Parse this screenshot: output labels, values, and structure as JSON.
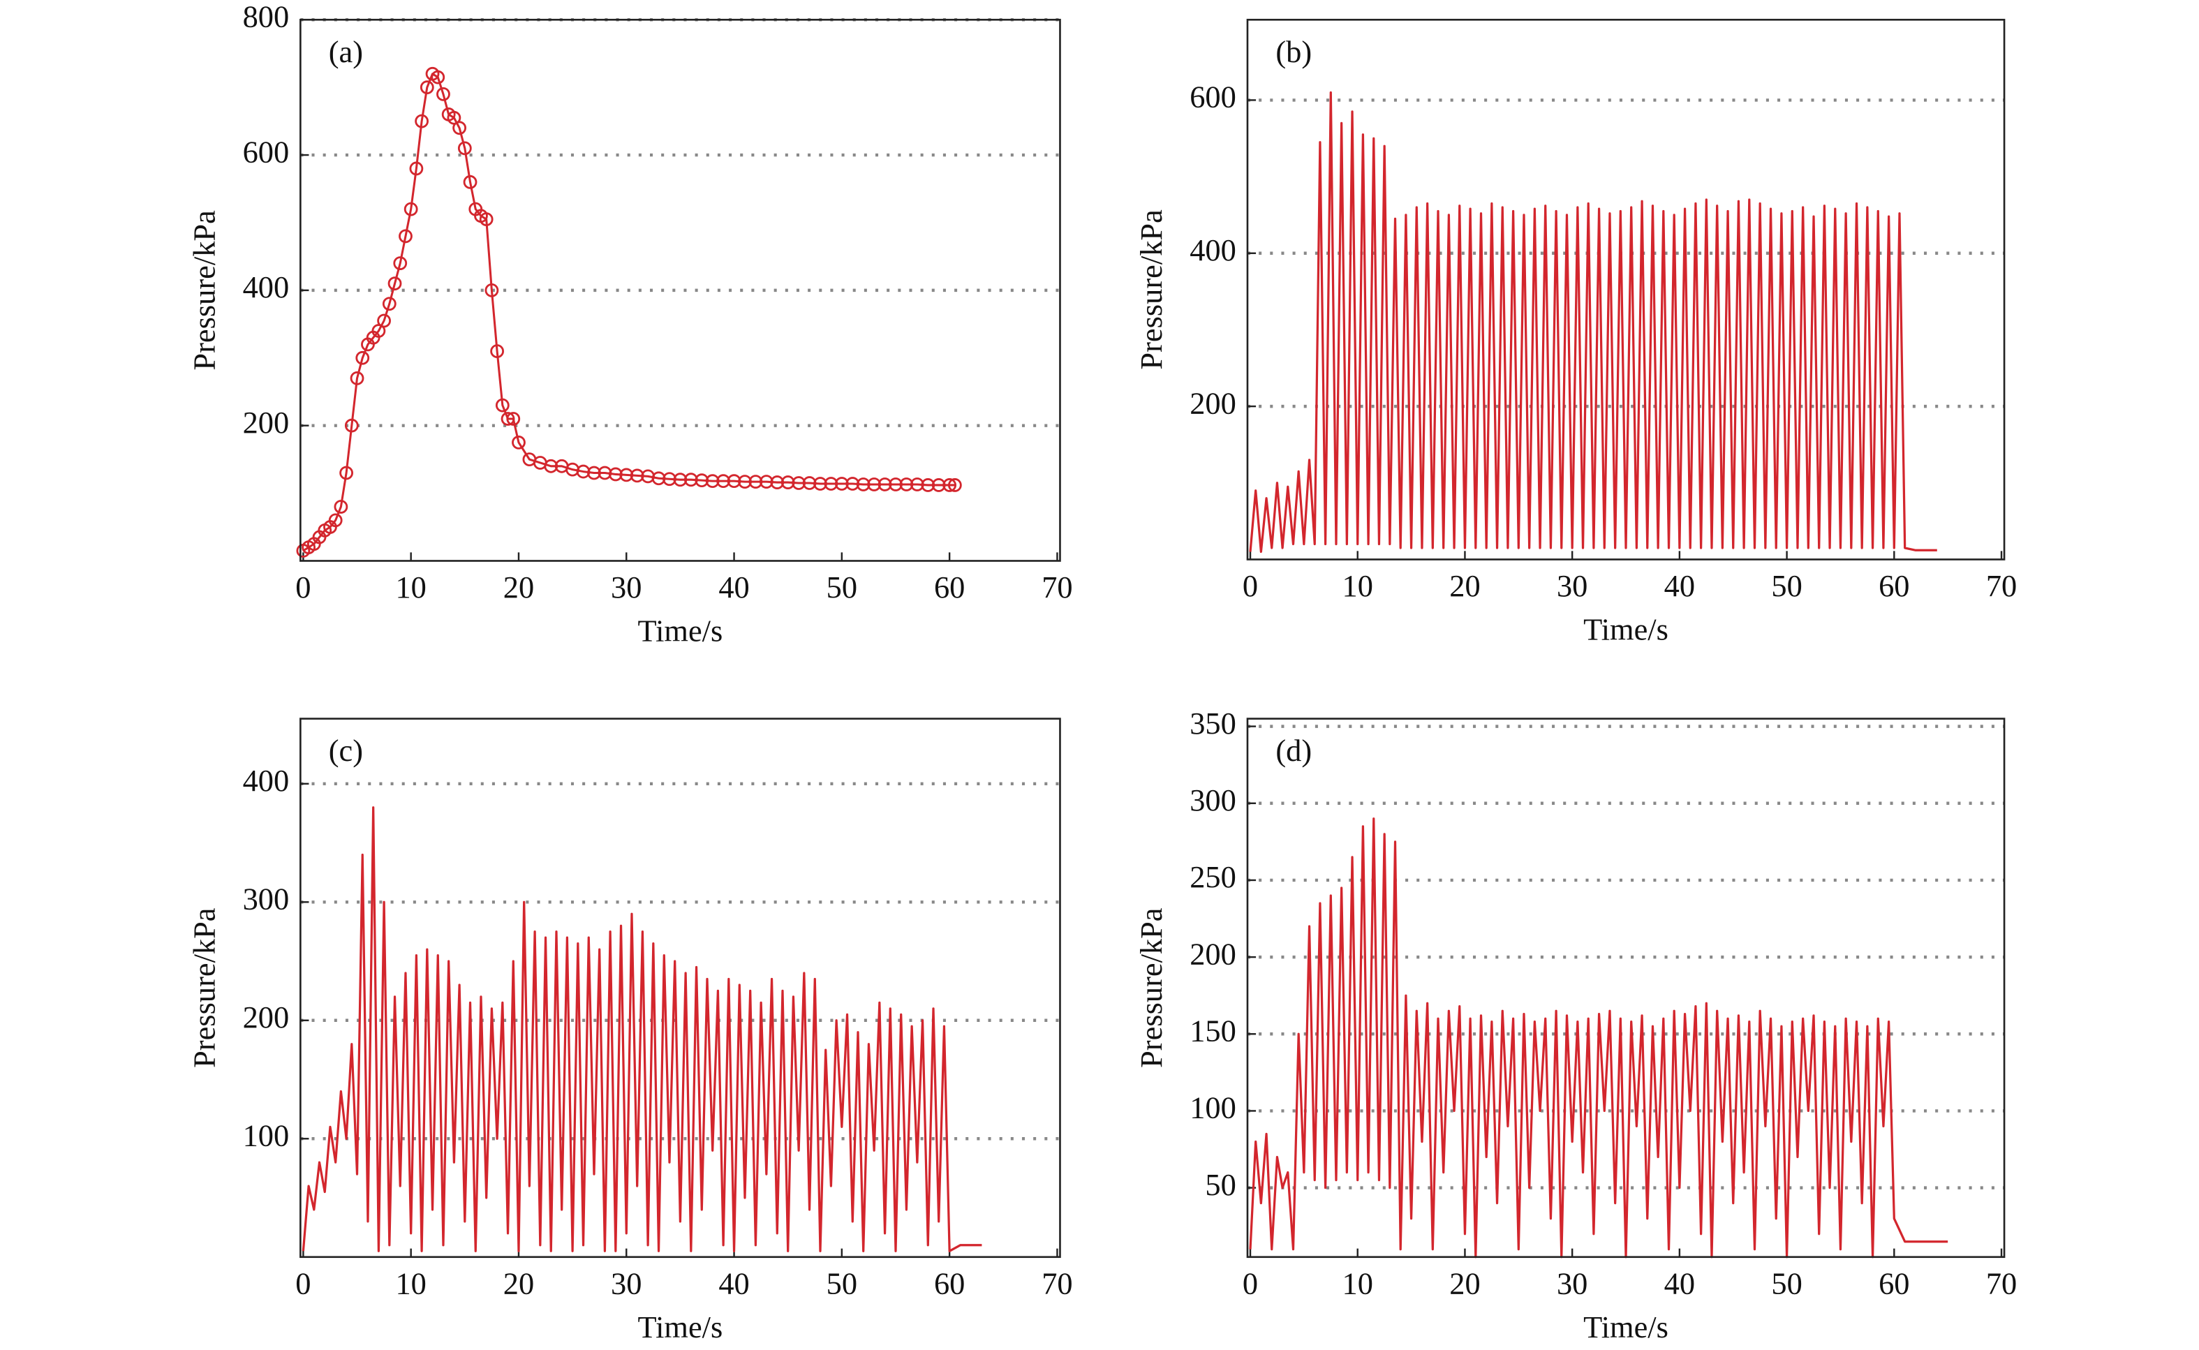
{
  "chart_data": [
    {
      "type": "line",
      "label": "(a)",
      "xlabel": "Time/s",
      "ylabel": "Pressure/kPa",
      "color": "#d3262d",
      "marker": "circle",
      "xlim": [
        0,
        70
      ],
      "xticks": [
        0,
        10,
        20,
        30,
        40,
        50,
        60,
        70
      ],
      "ylim": [
        0,
        800
      ],
      "yticks": [
        200,
        400,
        600,
        800
      ],
      "grid": true,
      "x": [
        0,
        0.5,
        1,
        1.5,
        2,
        2.5,
        3,
        3.5,
        4,
        4.5,
        5,
        5.5,
        6,
        6.5,
        7,
        7.5,
        8,
        8.5,
        9,
        9.5,
        10,
        10.5,
        11,
        11.5,
        12,
        12.5,
        13,
        13.5,
        14,
        14.5,
        15,
        15.5,
        16,
        16.5,
        17,
        17.5,
        18,
        18.5,
        19,
        19.5,
        20,
        21,
        22,
        23,
        24,
        25,
        26,
        27,
        28,
        29,
        30,
        31,
        32,
        33,
        34,
        35,
        36,
        37,
        38,
        39,
        40,
        41,
        42,
        43,
        44,
        45,
        46,
        47,
        48,
        49,
        50,
        51,
        52,
        53,
        54,
        55,
        56,
        57,
        58,
        59,
        60,
        60.5
      ],
      "values": [
        15,
        20,
        25,
        35,
        45,
        50,
        60,
        80,
        130,
        200,
        270,
        300,
        320,
        330,
        340,
        355,
        380,
        410,
        440,
        480,
        520,
        580,
        650,
        700,
        720,
        715,
        690,
        660,
        655,
        640,
        610,
        560,
        520,
        510,
        505,
        400,
        310,
        230,
        210,
        210,
        175,
        150,
        145,
        140,
        140,
        135,
        132,
        130,
        130,
        128,
        127,
        126,
        125,
        122,
        121,
        120,
        120,
        119,
        118,
        118,
        118,
        117,
        117,
        117,
        116,
        116,
        115,
        115,
        114,
        114,
        114,
        114,
        113,
        113,
        113,
        113,
        113,
        113,
        112,
        112,
        112,
        112
      ]
    },
    {
      "type": "line",
      "label": "(b)",
      "xlabel": "Time/s",
      "ylabel": "Pressure/kPa",
      "color": "#d3262d",
      "xlim": [
        0,
        70
      ],
      "xticks": [
        0,
        10,
        20,
        30,
        40,
        50,
        60,
        70
      ],
      "ylim": [
        0,
        705
      ],
      "yticks": [
        200,
        400,
        600
      ],
      "grid": true,
      "x": [
        0,
        0.5,
        1,
        1.5,
        2,
        2.5,
        3,
        3.5,
        4,
        4.5,
        5,
        5.5,
        6,
        6.5,
        7,
        7.5,
        8,
        8.5,
        9,
        9.5,
        10,
        10.5,
        11,
        11.5,
        12,
        12.5,
        13,
        13.5,
        14,
        14.5,
        15,
        15.5,
        16,
        16.5,
        17,
        17.5,
        18,
        18.5,
        19,
        19.5,
        20,
        20.5,
        21,
        21.5,
        22,
        22.5,
        23,
        23.5,
        24,
        24.5,
        25,
        25.5,
        26,
        26.5,
        27,
        27.5,
        28,
        28.5,
        29,
        29.5,
        30,
        30.5,
        31,
        31.5,
        32,
        32.5,
        33,
        33.5,
        34,
        34.5,
        35,
        35.5,
        36,
        36.5,
        37,
        37.5,
        38,
        38.5,
        39,
        39.5,
        40,
        40.5,
        41,
        41.5,
        42,
        42.5,
        43,
        43.5,
        44,
        44.5,
        45,
        45.5,
        46,
        46.5,
        47,
        47.5,
        48,
        48.5,
        49,
        49.5,
        50,
        50.5,
        51,
        51.5,
        52,
        52.5,
        53,
        53.5,
        54,
        54.5,
        55,
        55.5,
        56,
        56.5,
        57,
        57.5,
        58,
        58.5,
        59,
        59.5,
        60,
        60.5,
        61,
        62,
        63,
        64
      ],
      "values": [
        10,
        90,
        10,
        80,
        15,
        100,
        15,
        95,
        20,
        115,
        20,
        130,
        20,
        545,
        20,
        610,
        20,
        570,
        20,
        585,
        20,
        555,
        20,
        550,
        20,
        540,
        20,
        445,
        15,
        450,
        15,
        460,
        15,
        465,
        15,
        455,
        15,
        450,
        15,
        462,
        15,
        458,
        15,
        452,
        15,
        465,
        15,
        460,
        15,
        455,
        15,
        450,
        15,
        458,
        15,
        462,
        15,
        455,
        15,
        450,
        15,
        460,
        15,
        465,
        15,
        458,
        15,
        452,
        15,
        455,
        15,
        460,
        15,
        468,
        15,
        462,
        15,
        455,
        15,
        450,
        15,
        458,
        15,
        465,
        15,
        470,
        15,
        462,
        15,
        455,
        15,
        468,
        15,
        470,
        15,
        465,
        15,
        458,
        15,
        452,
        15,
        455,
        15,
        460,
        15,
        448,
        15,
        462,
        15,
        458,
        15,
        452,
        15,
        465,
        15,
        460,
        15,
        455,
        15,
        448,
        15,
        452,
        15,
        12,
        12,
        12
      ]
    },
    {
      "type": "line",
      "label": "(c)",
      "xlabel": "Time/s",
      "ylabel": "Pressure/kPa",
      "color": "#d3262d",
      "xlim": [
        0,
        70
      ],
      "xticks": [
        0,
        10,
        20,
        30,
        40,
        50,
        60,
        70
      ],
      "ylim": [
        0,
        455
      ],
      "yticks": [
        100,
        200,
        300,
        400
      ],
      "grid": true,
      "x": [
        0,
        0.5,
        1,
        1.5,
        2,
        2.5,
        3,
        3.5,
        4,
        4.5,
        5,
        5.5,
        6,
        6.5,
        7,
        7.5,
        8,
        8.5,
        9,
        9.5,
        10,
        10.5,
        11,
        11.5,
        12,
        12.5,
        13,
        13.5,
        14,
        14.5,
        15,
        15.5,
        16,
        16.5,
        17,
        17.5,
        18,
        18.5,
        19,
        19.5,
        20,
        20.5,
        21,
        21.5,
        22,
        22.5,
        23,
        23.5,
        24,
        24.5,
        25,
        25.5,
        26,
        26.5,
        27,
        27.5,
        28,
        28.5,
        29,
        29.5,
        30,
        30.5,
        31,
        31.5,
        32,
        32.5,
        33,
        33.5,
        34,
        34.5,
        35,
        35.5,
        36,
        36.5,
        37,
        37.5,
        38,
        38.5,
        39,
        39.5,
        40,
        40.5,
        41,
        41.5,
        42,
        42.5,
        43,
        43.5,
        44,
        44.5,
        45,
        45.5,
        46,
        46.5,
        47,
        47.5,
        48,
        48.5,
        49,
        49.5,
        50,
        50.5,
        51,
        51.5,
        52,
        52.5,
        53,
        53.5,
        54,
        54.5,
        55,
        55.5,
        56,
        56.5,
        57,
        57.5,
        58,
        58.5,
        59,
        59.5,
        60,
        61,
        62,
        63
      ],
      "values": [
        5,
        60,
        40,
        80,
        55,
        110,
        80,
        140,
        100,
        180,
        70,
        340,
        30,
        380,
        5,
        300,
        10,
        220,
        60,
        240,
        20,
        255,
        5,
        260,
        40,
        255,
        10,
        250,
        80,
        230,
        30,
        215,
        5,
        220,
        50,
        210,
        100,
        215,
        20,
        250,
        5,
        300,
        60,
        275,
        10,
        270,
        5,
        275,
        40,
        270,
        5,
        265,
        10,
        270,
        70,
        260,
        5,
        275,
        5,
        280,
        20,
        290,
        60,
        275,
        10,
        265,
        5,
        255,
        80,
        250,
        30,
        240,
        5,
        245,
        40,
        235,
        90,
        225,
        10,
        235,
        5,
        230,
        50,
        225,
        10,
        215,
        70,
        235,
        20,
        225,
        5,
        220,
        90,
        240,
        40,
        235,
        5,
        175,
        60,
        200,
        110,
        205,
        30,
        190,
        5,
        180,
        90,
        215,
        20,
        210,
        5,
        205,
        40,
        195,
        80,
        200,
        10,
        210,
        30,
        195,
        5,
        10,
        10,
        10
      ]
    },
    {
      "type": "line",
      "label": "(d)",
      "xlabel": "Time/s",
      "ylabel": "Pressure/kPa",
      "color": "#d3262d",
      "xlim": [
        0,
        70
      ],
      "xticks": [
        0,
        10,
        20,
        30,
        40,
        50,
        60,
        70
      ],
      "ylim": [
        5,
        355
      ],
      "yticks": [
        50,
        100,
        150,
        200,
        250,
        300,
        350
      ],
      "grid": true,
      "x": [
        0,
        0.5,
        1,
        1.5,
        2,
        2.5,
        3,
        3.5,
        4,
        4.5,
        5,
        5.5,
        6,
        6.5,
        7,
        7.5,
        8,
        8.5,
        9,
        9.5,
        10,
        10.5,
        11,
        11.5,
        12,
        12.5,
        13,
        13.5,
        14,
        14.5,
        15,
        15.5,
        16,
        16.5,
        17,
        17.5,
        18,
        18.5,
        19,
        19.5,
        20,
        20.5,
        21,
        21.5,
        22,
        22.5,
        23,
        23.5,
        24,
        24.5,
        25,
        25.5,
        26,
        26.5,
        27,
        27.5,
        28,
        28.5,
        29,
        29.5,
        30,
        30.5,
        31,
        31.5,
        32,
        32.5,
        33,
        33.5,
        34,
        34.5,
        35,
        35.5,
        36,
        36.5,
        37,
        37.5,
        38,
        38.5,
        39,
        39.5,
        40,
        40.5,
        41,
        41.5,
        42,
        42.5,
        43,
        43.5,
        44,
        44.5,
        45,
        45.5,
        46,
        46.5,
        47,
        47.5,
        48,
        48.5,
        49,
        49.5,
        50,
        50.5,
        51,
        51.5,
        52,
        52.5,
        53,
        53.5,
        54,
        54.5,
        55,
        55.5,
        56,
        56.5,
        57,
        57.5,
        58,
        58.5,
        59,
        59.5,
        60,
        61,
        62,
        63,
        64,
        65
      ],
      "values": [
        10,
        80,
        40,
        85,
        10,
        70,
        50,
        60,
        10,
        150,
        60,
        220,
        55,
        235,
        50,
        240,
        55,
        245,
        60,
        265,
        55,
        285,
        60,
        290,
        55,
        280,
        50,
        275,
        10,
        175,
        30,
        165,
        80,
        170,
        10,
        160,
        60,
        165,
        100,
        168,
        20,
        160,
        5,
        162,
        70,
        158,
        40,
        165,
        90,
        160,
        10,
        163,
        50,
        158,
        100,
        160,
        30,
        165,
        5,
        162,
        80,
        158,
        60,
        160,
        20,
        163,
        100,
        165,
        40,
        160,
        5,
        158,
        90,
        162,
        30,
        155,
        70,
        160,
        10,
        165,
        50,
        163,
        100,
        168,
        20,
        170,
        5,
        165,
        80,
        160,
        40,
        162,
        60,
        158,
        10,
        165,
        90,
        160,
        30,
        155,
        5,
        158,
        70,
        160,
        100,
        162,
        20,
        158,
        50,
        155,
        10,
        160,
        80,
        158,
        40,
        155,
        5,
        160,
        90,
        158,
        30,
        15,
        15,
        15,
        15,
        15
      ]
    }
  ]
}
